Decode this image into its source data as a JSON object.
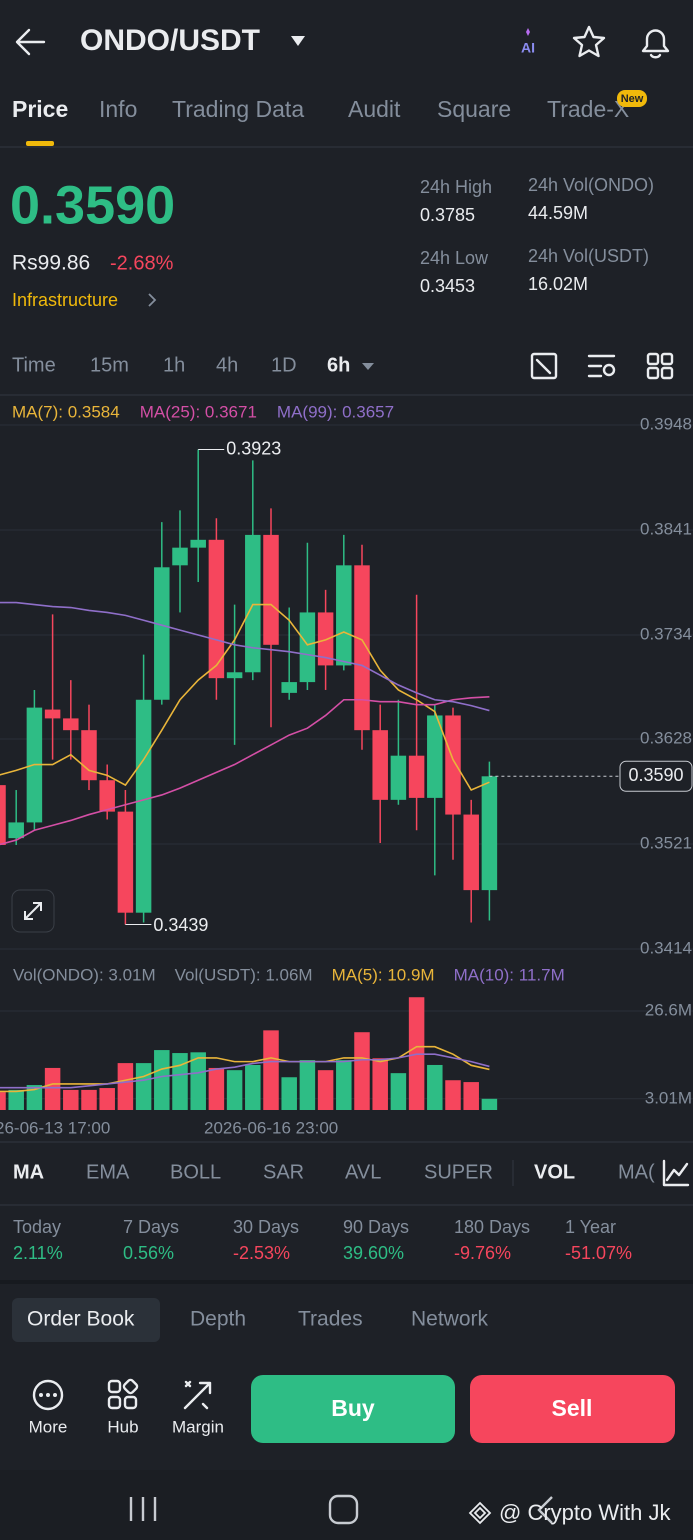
{
  "header": {
    "title": "ONDO/USDT",
    "ai": "AI"
  },
  "tabs": [
    "Price",
    "Info",
    "Trading Data",
    "Audit",
    "Square",
    "Trade-X"
  ],
  "new_badge": "New",
  "ticker": {
    "price": "0.3590",
    "local_price": "Rs99.86",
    "change": "-2.68%",
    "sector": "Infrastructure",
    "stats": [
      {
        "label": "24h High",
        "value": "0.3785"
      },
      {
        "label": "24h Vol(ONDO)",
        "value": "44.59M"
      },
      {
        "label": "24h Low",
        "value": "0.3453"
      },
      {
        "label": "24h Vol(USDT)",
        "value": "16.02M"
      }
    ]
  },
  "intervals": [
    "Time",
    "15m",
    "1h",
    "4h",
    "1D",
    "6h"
  ],
  "chart_data": {
    "type": "candlestick",
    "candles": [
      {
        "open": 0.3581,
        "high": 0.3607,
        "low": 0.3505,
        "close": 0.352
      },
      {
        "open": 0.3527,
        "high": 0.3576,
        "low": 0.352,
        "close": 0.3543
      },
      {
        "open": 0.3543,
        "high": 0.3678,
        "low": 0.3535,
        "close": 0.366
      },
      {
        "open": 0.3658,
        "high": 0.3755,
        "low": 0.3607,
        "close": 0.3649
      },
      {
        "open": 0.3649,
        "high": 0.3688,
        "low": 0.3607,
        "close": 0.3637
      },
      {
        "open": 0.3637,
        "high": 0.3663,
        "low": 0.3576,
        "close": 0.3586
      },
      {
        "open": 0.3586,
        "high": 0.3602,
        "low": 0.3546,
        "close": 0.3554
      },
      {
        "open": 0.3554,
        "high": 0.3576,
        "low": 0.3439,
        "close": 0.3451
      },
      {
        "open": 0.3451,
        "high": 0.3714,
        "low": 0.3441,
        "close": 0.3668
      },
      {
        "open": 0.3668,
        "high": 0.3849,
        "low": 0.3663,
        "close": 0.3803
      },
      {
        "open": 0.3805,
        "high": 0.3861,
        "low": 0.3757,
        "close": 0.3823
      },
      {
        "open": 0.3823,
        "high": 0.3923,
        "low": 0.3788,
        "close": 0.3831
      },
      {
        "open": 0.3831,
        "high": 0.3853,
        "low": 0.3668,
        "close": 0.369
      },
      {
        "open": 0.369,
        "high": 0.3765,
        "low": 0.3622,
        "close": 0.3696
      },
      {
        "open": 0.3696,
        "high": 0.3912,
        "low": 0.3688,
        "close": 0.3836
      },
      {
        "open": 0.3836,
        "high": 0.3863,
        "low": 0.364,
        "close": 0.3724
      },
      {
        "open": 0.3675,
        "high": 0.3762,
        "low": 0.3668,
        "close": 0.3686
      },
      {
        "open": 0.3686,
        "high": 0.3828,
        "low": 0.3678,
        "close": 0.3757
      },
      {
        "open": 0.3757,
        "high": 0.378,
        "low": 0.3678,
        "close": 0.3703
      },
      {
        "open": 0.3703,
        "high": 0.3836,
        "low": 0.3698,
        "close": 0.3805
      },
      {
        "open": 0.3805,
        "high": 0.3826,
        "low": 0.3617,
        "close": 0.3637
      },
      {
        "open": 0.3637,
        "high": 0.3663,
        "low": 0.3522,
        "close": 0.3566
      },
      {
        "open": 0.3566,
        "high": 0.3668,
        "low": 0.3561,
        "close": 0.3611
      },
      {
        "open": 0.3611,
        "high": 0.3775,
        "low": 0.3535,
        "close": 0.3568
      },
      {
        "open": 0.3568,
        "high": 0.3663,
        "low": 0.3489,
        "close": 0.3652
      },
      {
        "open": 0.3652,
        "high": 0.366,
        "low": 0.3505,
        "close": 0.3551
      },
      {
        "open": 0.3551,
        "high": 0.3566,
        "low": 0.3441,
        "close": 0.3474
      },
      {
        "open": 0.3474,
        "high": 0.3605,
        "low": 0.3443,
        "close": 0.359
      }
    ],
    "ylim": [
      0.3414,
      0.3948
    ],
    "yticks": [
      0.3948,
      0.3841,
      0.3734,
      0.3628,
      0.3521,
      0.3414
    ],
    "up_color": "#2ebd85",
    "down_color": "#f6465d",
    "grid": true,
    "last_price": {
      "value": 0.359,
      "label": "0.3590"
    },
    "series": [
      {
        "name": "MA(7): 0.3584",
        "color": "#e9b53a",
        "values": [
          0.3591,
          0.3596,
          0.3602,
          0.3602,
          0.3612,
          0.3596,
          0.3591,
          0.3581,
          0.3607,
          0.3637,
          0.3668,
          0.3688,
          0.3703,
          0.3729,
          0.3765,
          0.3765,
          0.3749,
          0.3724,
          0.3729,
          0.3737,
          0.3729,
          0.3698,
          0.3678,
          0.3668,
          0.3656,
          0.3607,
          0.3576,
          0.3584
        ]
      },
      {
        "name": "MA(25): 0.3671",
        "color": "#d44fa6",
        "values": [
          0.352,
          0.3525,
          0.3535,
          0.354,
          0.3545,
          0.3551,
          0.3556,
          0.3561,
          0.3566,
          0.3571,
          0.3578,
          0.3586,
          0.3594,
          0.3602,
          0.3612,
          0.3622,
          0.3632,
          0.3639,
          0.3652,
          0.3668,
          0.3668,
          0.3666,
          0.3666,
          0.3663,
          0.3663,
          0.3668,
          0.367,
          0.3671
        ]
      },
      {
        "name": "MA(99): 0.3657",
        "color": "#8f6fc9",
        "values": [
          0.3767,
          0.3767,
          0.3765,
          0.3763,
          0.3762,
          0.3759,
          0.3757,
          0.3754,
          0.3749,
          0.3744,
          0.3739,
          0.3734,
          0.3729,
          0.3724,
          0.3721,
          0.3719,
          0.3717,
          0.3714,
          0.3711,
          0.3707,
          0.3703,
          0.3693,
          0.3683,
          0.3675,
          0.3668,
          0.3666,
          0.3662,
          0.3657
        ]
      }
    ],
    "volume": {
      "legend": [
        "Vol(ONDO): 3.01M",
        "Vol(USDT): 1.06M"
      ],
      "values": [
        4.8,
        5.4,
        6.7,
        11.3,
        5.4,
        5.4,
        5.9,
        12.6,
        12.6,
        16.1,
        15.3,
        15.5,
        11.3,
        10.7,
        12.1,
        21.4,
        8.8,
        13.4,
        10.7,
        13.4,
        20.9,
        13.9,
        9.9,
        30.3,
        12.1,
        8.0,
        7.5,
        3.01
      ],
      "ylim": [
        0,
        26.6
      ],
      "yticks": [
        {
          "value": 26.6,
          "label": "26.6M"
        },
        {
          "value": 3.01,
          "label": "3.01M"
        }
      ],
      "series": [
        {
          "name": "MA(5): 10.9M",
          "color": "#e9b53a",
          "values": [
            5,
            5,
            5.5,
            7,
            7,
            7,
            7,
            8,
            9,
            11,
            12,
            14,
            14,
            13,
            13,
            14,
            13,
            13,
            13,
            14,
            14,
            13,
            14,
            17,
            17,
            15,
            12,
            10.9
          ]
        },
        {
          "name": "MA(10): 11.7M",
          "color": "#8f6fc9",
          "values": [
            6,
            6,
            6,
            6,
            6,
            6.5,
            7,
            7.5,
            8,
            9,
            9.5,
            10,
            11,
            11.5,
            12.5,
            13,
            13,
            13,
            13,
            13,
            13.5,
            13.5,
            14,
            15,
            15,
            14,
            13,
            11.7
          ]
        }
      ]
    },
    "time_labels": [
      "26-06-13 17:00",
      "2026-06-16 23:00"
    ]
  },
  "indicators": [
    "MA",
    "EMA",
    "BOLL",
    "SAR",
    "AVL",
    "SUPER",
    "VOL",
    "MA("
  ],
  "performance": [
    {
      "label": "Today",
      "value": "2.11%"
    },
    {
      "label": "7 Days",
      "value": "0.56%"
    },
    {
      "label": "30 Days",
      "value": "-2.53%"
    },
    {
      "label": "90 Days",
      "value": "39.60%"
    },
    {
      "label": "180 Days",
      "value": "-9.76%"
    },
    {
      "label": "1 Year",
      "value": "-51.07%"
    }
  ],
  "book_tabs": [
    "Order Book",
    "Depth",
    "Trades",
    "Network"
  ],
  "actions": [
    "More",
    "Hub",
    "Margin"
  ],
  "buy": "Buy",
  "sell": "Sell",
  "watermark": "@ Crypto With Jk"
}
